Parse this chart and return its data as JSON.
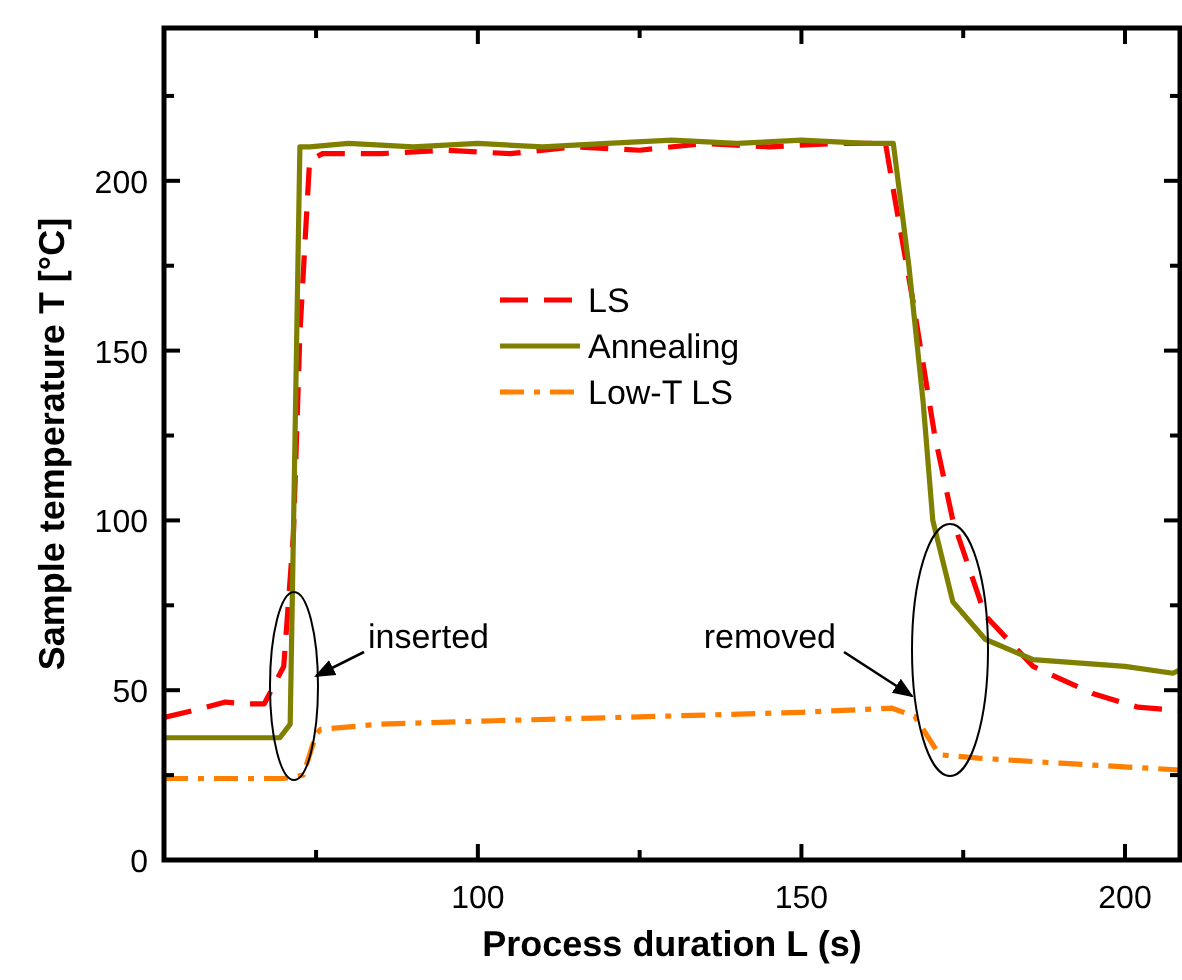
{
  "chart_data": {
    "type": "line",
    "xlabel": "Process duration L (s)",
    "ylabel": "Sample temperature T [°C]",
    "xlim": [
      51.5,
      208.5
    ],
    "ylim": [
      0,
      245
    ],
    "xticks": [
      {
        "value": 75,
        "label": null
      },
      100,
      {
        "value": 125,
        "label": null
      },
      150,
      {
        "value": 175,
        "label": null
      },
      200
    ],
    "yticks": [
      0,
      {
        "value": 25,
        "label": null
      },
      50,
      {
        "value": 75,
        "label": null
      },
      100,
      {
        "value": 125,
        "label": null
      },
      150,
      {
        "value": 175,
        "label": null
      },
      200,
      {
        "value": 225,
        "label": null
      }
    ],
    "legend": "center",
    "grid": false,
    "marker": "none",
    "series": [
      {
        "name": "LS",
        "color": "#ff0000",
        "line_style": "dashed",
        "x": [
          51.5,
          56,
          61,
          64,
          67,
          70,
          71.5,
          72.5,
          74,
          76,
          85,
          95,
          105,
          115,
          125,
          135,
          145,
          155,
          163,
          164.5,
          167.2,
          170.6,
          173.4,
          178.4,
          185.8,
          195,
          202,
          208.5
        ],
        "values": [
          42,
          44,
          46.5,
          46,
          46,
          57,
          96,
          155,
          206,
          208,
          208,
          209,
          208,
          210,
          209,
          211,
          210,
          211,
          211,
          194,
          165,
          125,
          100,
          72,
          57,
          49,
          45,
          44
        ]
      },
      {
        "name": "Annealing",
        "color": "#808000",
        "line_style": "solid",
        "x": [
          51.5,
          60,
          69.4,
          71,
          72.5,
          74,
          80,
          90,
          100,
          110,
          120,
          130,
          140,
          150,
          160,
          164.2,
          166.6,
          168.8,
          170.3,
          173.4,
          178.4,
          185.8,
          200,
          207.4,
          208.5
        ],
        "values": [
          36,
          36,
          36,
          40,
          210,
          210,
          211,
          210,
          211,
          210,
          211,
          212,
          211,
          212,
          211,
          211,
          175,
          135,
          100,
          76,
          65,
          59,
          57,
          55,
          56
        ]
      },
      {
        "name": "Low-T LS",
        "color": "#ff8000",
        "line_style": "dashdot",
        "x": [
          51.5,
          60,
          70,
          73,
          75,
          75.7,
          85,
          102.5,
          128,
          150,
          164,
          167.5,
          171.3,
          177.4,
          190,
          208.5
        ],
        "values": [
          24,
          24,
          24,
          25,
          37,
          38.5,
          40,
          41,
          42.3,
          43.5,
          44.7,
          42.3,
          31,
          30,
          28.5,
          26.5
        ]
      }
    ],
    "annotations": [
      "inserted",
      "removed"
    ]
  }
}
